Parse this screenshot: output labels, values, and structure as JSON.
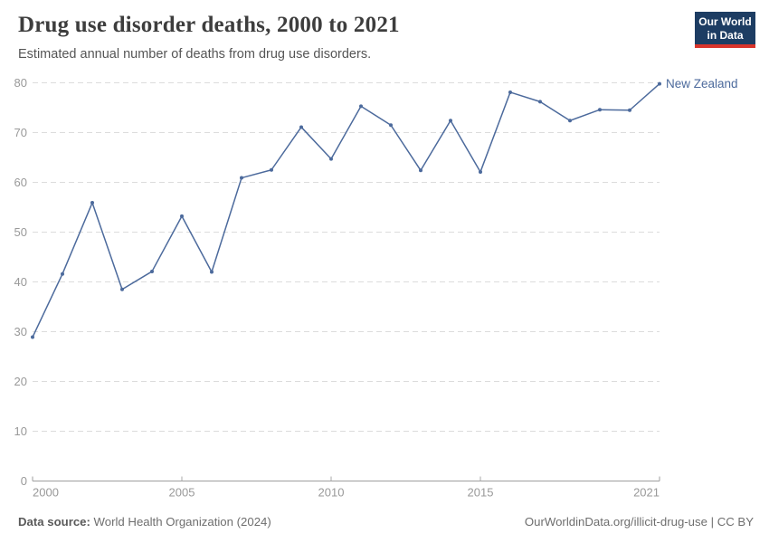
{
  "header": {
    "title": "Drug use disorder deaths, 2000 to 2021",
    "subtitle": "Estimated annual number of deaths from drug use disorders.",
    "logo": {
      "line1": "Our World",
      "line2": "in Data",
      "bg_color": "#1d3d63",
      "accent_color": "#d9342b"
    }
  },
  "chart_data": {
    "type": "line",
    "title": "Drug use disorder deaths, 2000 to 2021",
    "subtitle": "Estimated annual number of deaths from drug use disorders.",
    "xlabel": "",
    "ylabel": "",
    "xlim": [
      2000,
      2021
    ],
    "ylim": [
      0,
      80
    ],
    "yticks": [
      0,
      10,
      20,
      30,
      40,
      50,
      60,
      70,
      80
    ],
    "xticks": [
      2000,
      2005,
      2010,
      2015,
      2021
    ],
    "grid": "horizontal-dashed",
    "legend_position": "end-of-line-label",
    "series": [
      {
        "name": "New Zealand",
        "color": "#4c6a9c",
        "x": [
          2000,
          2001,
          2002,
          2003,
          2004,
          2005,
          2006,
          2007,
          2008,
          2009,
          2010,
          2011,
          2012,
          2013,
          2014,
          2015,
          2016,
          2017,
          2018,
          2019,
          2020,
          2021
        ],
        "values": [
          28.9,
          41.6,
          55.9,
          38.5,
          42.1,
          53.2,
          42.0,
          60.9,
          62.5,
          71.1,
          64.7,
          75.3,
          71.5,
          62.4,
          72.4,
          62.1,
          78.1,
          76.2,
          72.4,
          74.6,
          74.5,
          79.8
        ]
      }
    ],
    "axis_colors": {
      "gridline": "#dcdcdc",
      "axis_line": "#9e9e9e",
      "tick": "#aaaaaa",
      "tick_label": "#999999"
    }
  },
  "footer": {
    "source_label": "Data source:",
    "source_text": " World Health Organization (2024)",
    "url_text": "OurWorldinData.org/illicit-drug-use | CC BY"
  }
}
